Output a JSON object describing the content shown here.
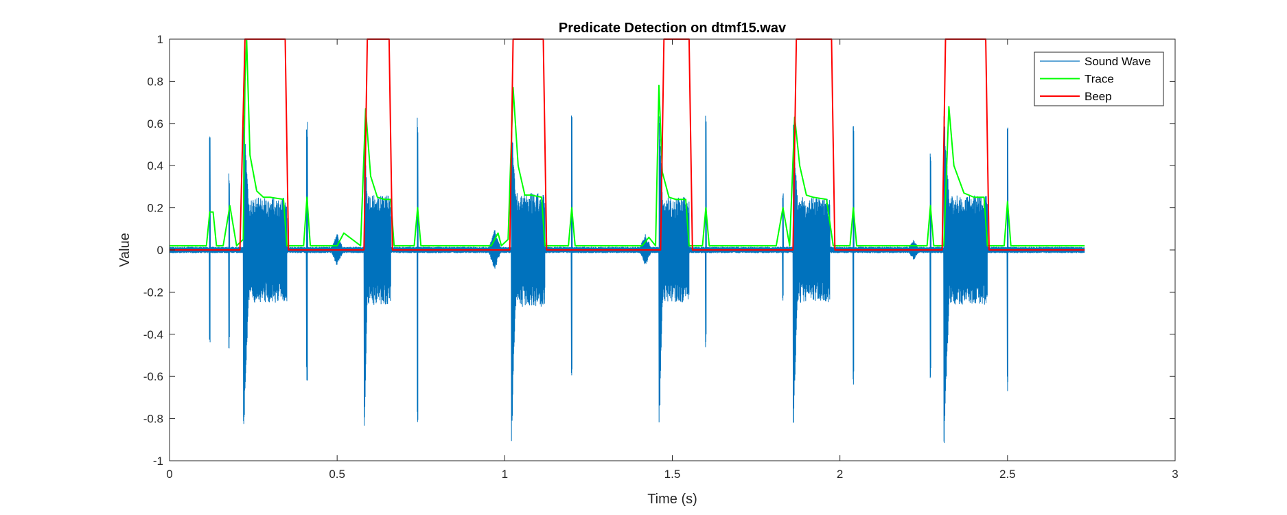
{
  "chart_data": {
    "type": "line",
    "title": "Predicate Detection on dtmf15.wav",
    "xlabel": "Time (s)",
    "ylabel": "Value",
    "xlim": [
      0,
      3
    ],
    "ylim": [
      -1,
      1
    ],
    "x_ticks": [
      0,
      0.5,
      1,
      1.5,
      2,
      2.5,
      3
    ],
    "x_tick_labels": [
      "0",
      "0.5",
      "1",
      "1.5",
      "2",
      "2.5",
      "3"
    ],
    "y_ticks": [
      -1,
      -0.8,
      -0.6,
      -0.4,
      -0.2,
      0,
      0.2,
      0.4,
      0.6,
      0.8,
      1
    ],
    "y_tick_labels": [
      "-1",
      "-0.8",
      "-0.6",
      "-0.4",
      "-0.2",
      "0",
      "0.2",
      "0.4",
      "0.6",
      "0.8",
      "1"
    ],
    "grid": false,
    "legend_position": "top-right",
    "series": [
      {
        "name": "Sound Wave",
        "color": "#0072BD",
        "style": "dense oscillating waveform",
        "duration": 2.73,
        "noise_amplitude": 0.015,
        "tone_bursts": [
          {
            "start": 0.22,
            "end": 0.35,
            "amplitude": 0.25,
            "peak_min": -0.95,
            "peak_max": 0.7
          },
          {
            "start": 0.58,
            "end": 0.66,
            "amplitude": 0.26,
            "peak_min": -0.98,
            "peak_max": 0.65
          },
          {
            "start": 1.02,
            "end": 1.12,
            "amplitude": 0.27,
            "peak_min": -0.96,
            "peak_max": 0.65
          },
          {
            "start": 1.46,
            "end": 1.55,
            "amplitude": 0.25,
            "peak_min": -0.95,
            "peak_max": 0.7
          },
          {
            "start": 1.86,
            "end": 1.97,
            "amplitude": 0.25,
            "peak_min": -0.94,
            "peak_max": 0.64
          },
          {
            "start": 2.31,
            "end": 2.44,
            "amplitude": 0.26,
            "peak_min": -0.99,
            "peak_max": 0.67
          }
        ],
        "spikes": [
          {
            "t": 0.12,
            "min": -0.44,
            "max": 0.55
          },
          {
            "t": 0.178,
            "min": -0.47,
            "max": 0.37
          },
          {
            "t": 0.41,
            "min": -0.65,
            "max": 0.61
          },
          {
            "t": 0.74,
            "min": -0.83,
            "max": 0.63
          },
          {
            "t": 1.2,
            "min": -0.6,
            "max": 0.66
          },
          {
            "t": 1.6,
            "min": -0.47,
            "max": 0.64
          },
          {
            "t": 1.83,
            "min": -0.24,
            "max": 0.28
          },
          {
            "t": 2.04,
            "min": -0.66,
            "max": 0.6
          },
          {
            "t": 2.27,
            "min": -0.64,
            "max": 0.47
          },
          {
            "t": 2.5,
            "min": -0.69,
            "max": 0.65
          }
        ],
        "small_bumps": [
          {
            "t": 0.5,
            "amp": 0.08
          },
          {
            "t": 0.97,
            "amp": 0.1
          },
          {
            "t": 1.42,
            "amp": 0.08
          },
          {
            "t": 2.22,
            "amp": 0.05
          }
        ]
      },
      {
        "name": "Trace",
        "color": "#00FF00",
        "x": [
          0,
          0.11,
          0.12,
          0.13,
          0.14,
          0.16,
          0.18,
          0.2,
          0.22,
          0.225,
          0.23,
          0.24,
          0.26,
          0.28,
          0.3,
          0.34,
          0.35,
          0.36,
          0.4,
          0.41,
          0.42,
          0.5,
          0.52,
          0.57,
          0.585,
          0.6,
          0.62,
          0.64,
          0.66,
          0.67,
          0.73,
          0.74,
          0.75,
          0.96,
          0.98,
          0.99,
          1.01,
          1.025,
          1.04,
          1.06,
          1.08,
          1.11,
          1.12,
          1.13,
          1.19,
          1.2,
          1.21,
          1.41,
          1.43,
          1.45,
          1.46,
          1.47,
          1.49,
          1.51,
          1.54,
          1.55,
          1.56,
          1.59,
          1.6,
          1.61,
          1.81,
          1.83,
          1.85,
          1.865,
          1.88,
          1.9,
          1.92,
          1.96,
          1.98,
          2.03,
          2.04,
          2.05,
          2.26,
          2.27,
          2.28,
          2.31,
          2.325,
          2.34,
          2.37,
          2.4,
          2.43,
          2.44,
          2.45,
          2.49,
          2.5,
          2.51,
          2.73
        ],
        "y": [
          0.02,
          0.02,
          0.18,
          0.18,
          0.02,
          0.02,
          0.21,
          0.02,
          0.05,
          0.8,
          1.0,
          0.45,
          0.28,
          0.25,
          0.25,
          0.24,
          0.02,
          0.02,
          0.02,
          0.25,
          0.02,
          0.02,
          0.08,
          0.02,
          0.67,
          0.35,
          0.25,
          0.24,
          0.24,
          0.02,
          0.02,
          0.2,
          0.02,
          0.02,
          0.08,
          0.02,
          0.05,
          0.77,
          0.4,
          0.26,
          0.26,
          0.25,
          0.02,
          0.02,
          0.02,
          0.2,
          0.02,
          0.02,
          0.06,
          0.02,
          0.78,
          0.37,
          0.25,
          0.24,
          0.24,
          0.02,
          0.02,
          0.02,
          0.2,
          0.02,
          0.02,
          0.2,
          0.02,
          0.63,
          0.4,
          0.26,
          0.25,
          0.24,
          0.02,
          0.02,
          0.2,
          0.02,
          0.02,
          0.21,
          0.02,
          0.02,
          0.68,
          0.4,
          0.27,
          0.25,
          0.25,
          0.02,
          0.02,
          0.02,
          0.23,
          0.02,
          0.02
        ]
      },
      {
        "name": "Beep",
        "color": "#FF0000",
        "x": [
          0,
          0.21,
          0.225,
          0.345,
          0.355,
          0.58,
          0.59,
          0.655,
          0.665,
          1.015,
          1.025,
          1.115,
          1.125,
          1.465,
          1.475,
          1.55,
          1.56,
          1.86,
          1.87,
          1.975,
          1.985,
          2.305,
          2.315,
          2.435,
          2.445,
          2.73
        ],
        "y": [
          0,
          0,
          1,
          1,
          0,
          0,
          1,
          1,
          0,
          0,
          1,
          1,
          0,
          0,
          1,
          1,
          0,
          0,
          1,
          1,
          0,
          0,
          1,
          1,
          0,
          0
        ]
      }
    ]
  }
}
